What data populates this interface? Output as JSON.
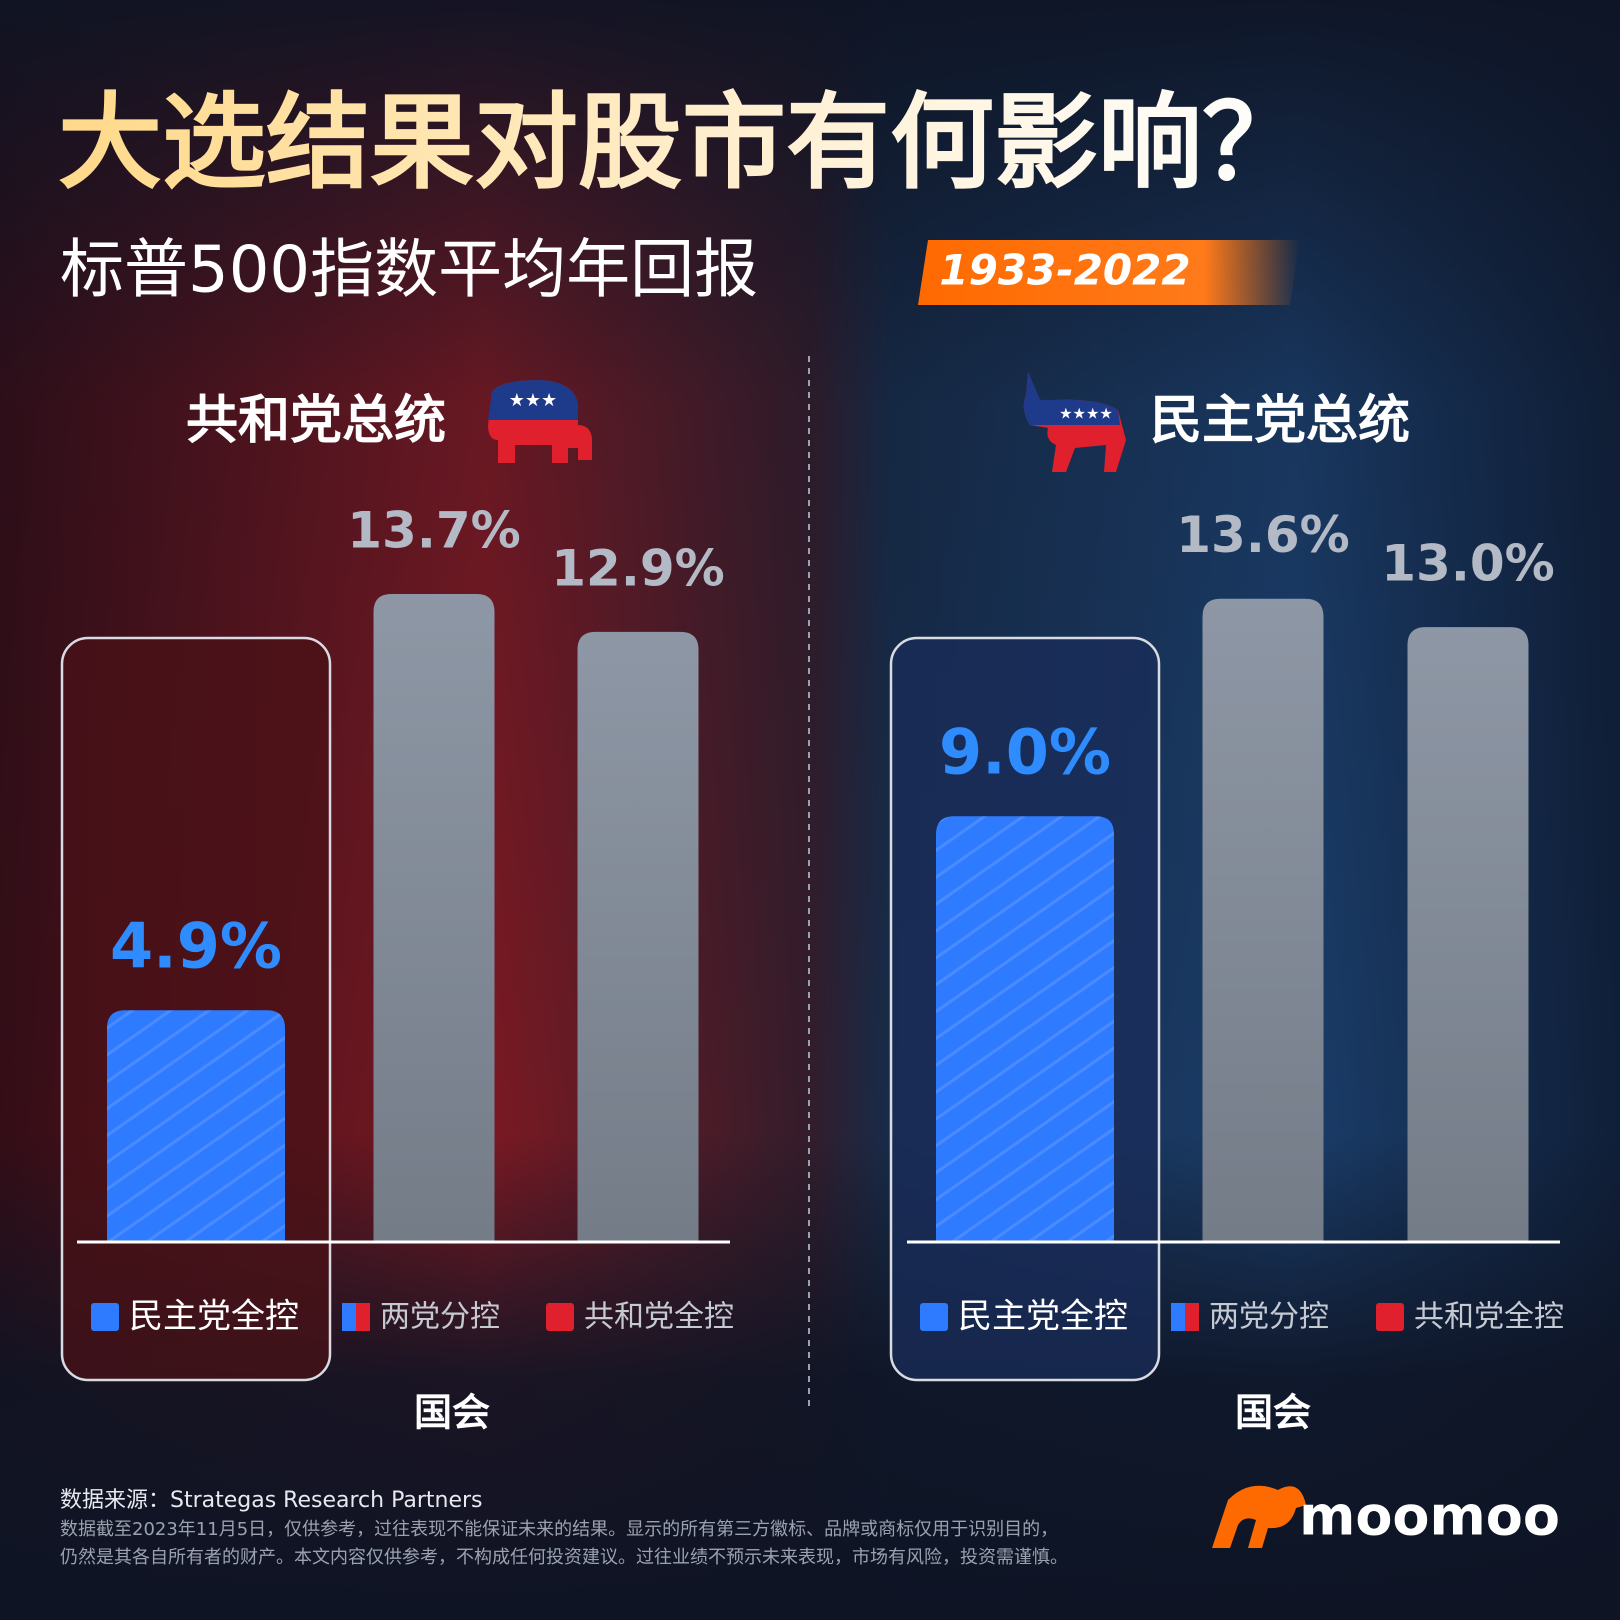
{
  "title": "大选结果对股市有何影响？",
  "subtitle": "标普500指数平均年回报",
  "period": "1933-2022",
  "chart_data": [
    {
      "type": "bar",
      "title": "共和党总统",
      "x_label": "国会",
      "categories": [
        "民主党全控",
        "两党分控",
        "共和党全控"
      ],
      "values": [
        4.9,
        13.7,
        12.9
      ],
      "value_labels": [
        "4.9%",
        "13.7%",
        "12.9%"
      ],
      "colors": [
        "#2f7bff",
        "#8b94a2",
        "#8b94a2"
      ],
      "highlight": 0
    },
    {
      "type": "bar",
      "title": "民主党总统",
      "x_label": "国会",
      "categories": [
        "民主党全控",
        "两党分控",
        "共和党全控"
      ],
      "values": [
        9.0,
        13.6,
        13.0
      ],
      "value_labels": [
        "9.0%",
        "13.6%",
        "13.0%"
      ],
      "colors": [
        "#2f7bff",
        "#8b94a2",
        "#8b94a2"
      ],
      "highlight": 0
    }
  ],
  "source": "数据来源：Strategas Research Partners",
  "disclaimer": [
    "数据截至2023年11月5日，仅供参考，过往表现不能保证未来的结果。显示的所有第三方徽标、品牌或商标仅用于识别目的，",
    "仍然是其各自所有者的财产。本文内容仅供参考，不构成任何投资建议。过往业绩不预示未来表现，市场有风险，投资需谨慎。"
  ],
  "brand": "moomoo"
}
